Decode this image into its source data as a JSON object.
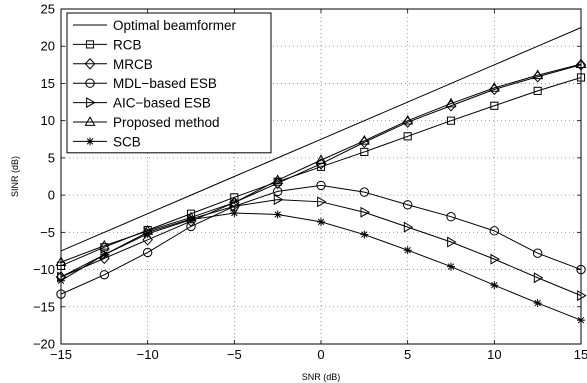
{
  "chart_data": {
    "type": "line",
    "title": "",
    "xlabel": "SNR (dB)",
    "ylabel": "SINR (dB)",
    "xlim": [
      -15,
      15
    ],
    "ylim": [
      -20,
      25
    ],
    "xticks": [
      -15,
      -10,
      -5,
      0,
      5,
      10,
      15
    ],
    "yticks": [
      -20,
      -15,
      -10,
      -5,
      0,
      5,
      10,
      15,
      20,
      25
    ],
    "grid": true,
    "legend_position": "top-left",
    "x": [
      -15,
      -12.5,
      -10,
      -7.5,
      -5,
      -2.5,
      0,
      2.5,
      5,
      7.5,
      10,
      12.5,
      15
    ],
    "series": [
      {
        "name": "Optimal beamformer",
        "marker": "none",
        "values": [
          -7.5,
          -5.0,
          -2.5,
          0.0,
          2.5,
          5.0,
          7.5,
          10.0,
          12.5,
          15.0,
          17.5,
          20.0,
          22.5
        ]
      },
      {
        "name": "RCB",
        "marker": "square",
        "values": [
          -9.5,
          -7.0,
          -4.7,
          -2.5,
          -0.3,
          1.8,
          3.8,
          5.8,
          7.9,
          10.0,
          12.0,
          14.0,
          15.8
        ]
      },
      {
        "name": "MRCB",
        "marker": "diamond",
        "values": [
          -11.0,
          -8.5,
          -6.0,
          -3.5,
          -1.0,
          1.6,
          4.2,
          7.1,
          9.8,
          12.0,
          14.2,
          15.9,
          17.5
        ]
      },
      {
        "name": "MDL−based ESB",
        "marker": "circle",
        "values": [
          -13.3,
          -10.7,
          -7.7,
          -4.2,
          -1.5,
          0.5,
          1.3,
          0.4,
          -1.3,
          -2.9,
          -4.8,
          -7.8,
          -10.0
        ]
      },
      {
        "name": "AIC−based ESB",
        "marker": "triangle-right",
        "values": [
          -11.0,
          -8.0,
          -5.0,
          -3.2,
          -1.5,
          -0.6,
          -0.9,
          -2.3,
          -4.3,
          -6.3,
          -8.6,
          -11.1,
          -13.5
        ]
      },
      {
        "name": "Proposed method",
        "marker": "triangle-up",
        "values": [
          -9.0,
          -6.8,
          -4.8,
          -3.0,
          -1.0,
          2.0,
          4.7,
          7.3,
          10.0,
          12.3,
          14.4,
          16.1,
          17.6
        ]
      },
      {
        "name": "SCB",
        "marker": "star",
        "values": [
          -11.5,
          -8.0,
          -5.2,
          -3.3,
          -2.4,
          -2.6,
          -3.6,
          -5.3,
          -7.4,
          -9.6,
          -12.1,
          -14.5,
          -16.8
        ]
      }
    ]
  }
}
